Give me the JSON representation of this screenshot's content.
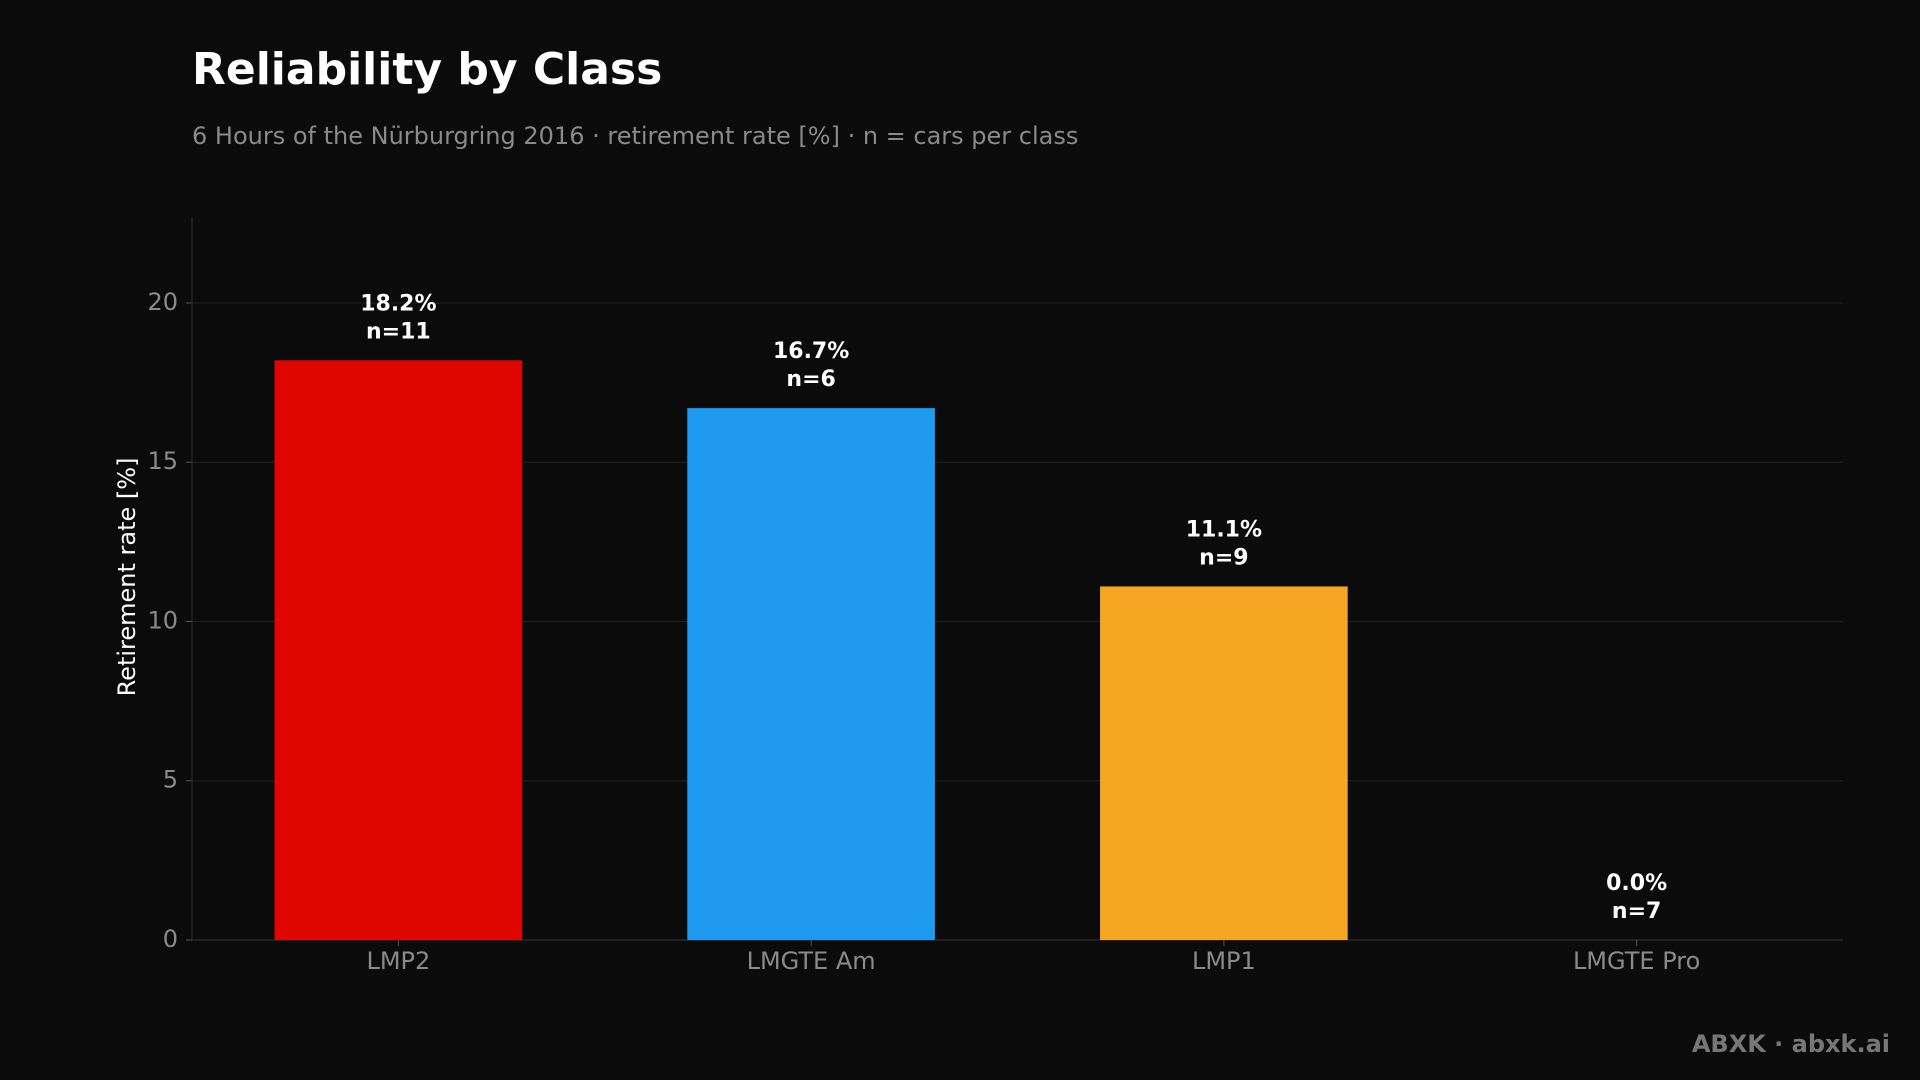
{
  "chart_data": {
    "type": "bar",
    "title": "Reliability by Class",
    "subtitle": "6 Hours of the Nürburgring 2016 · retirement rate [%] · n = cars per class",
    "y_label": "Retirement rate [%]",
    "categories": [
      "LMP2",
      "LMGTE Am",
      "LMP1",
      "LMGTE Pro"
    ],
    "values": [
      18.2,
      16.7,
      11.1,
      0.0
    ],
    "value_labels": [
      "18.2%",
      "16.7%",
      "11.1%",
      "0.0%"
    ],
    "sample_labels": [
      "n=11",
      "n=6",
      "n=9",
      "n=7"
    ],
    "colors": [
      "#e00600",
      "#1e9bf0",
      "#f5a623",
      "#9b59b6"
    ],
    "ylim": [
      0,
      22.7
    ],
    "yticks": [
      0,
      5,
      10,
      15,
      20
    ],
    "grid": true,
    "footer": "ABXK · abxk.ai"
  }
}
